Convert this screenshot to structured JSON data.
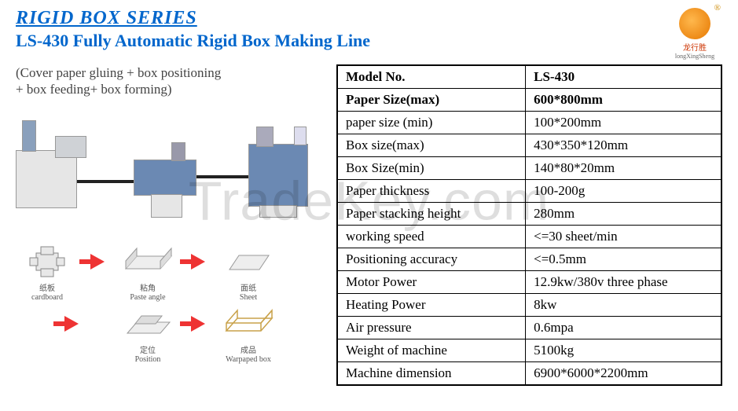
{
  "header": {
    "series": "RIGID BOX SERIES",
    "product": "LS-430 Fully Automatic Rigid Box Making Line",
    "subtitle_l1": "(Cover paper gluing + box positioning",
    "subtitle_l2": "+ box feeding+ box forming)"
  },
  "logo": {
    "cn": "龙行胜",
    "en": "longXingSheng"
  },
  "watermark": "TradeKey.com",
  "diagram": {
    "s1_cn": "纸板",
    "s1_en": "cardboard",
    "s2_cn": "粘角",
    "s2_en": "Paste angle",
    "s3_cn": "面纸",
    "s3_en": "Sheet",
    "s4_cn": "定位",
    "s4_en": "Position",
    "s5_cn": "成品",
    "s5_en": "Warpaped box"
  },
  "spec": {
    "columns": [
      "Model  No.",
      "LS-430"
    ],
    "rows": [
      [
        "Paper Size(max)",
        "600*800mm"
      ],
      [
        "paper size (min)",
        "100*200mm"
      ],
      [
        "Box size(max)",
        "430*350*120mm"
      ],
      [
        "Box Size(min)",
        "140*80*20mm"
      ],
      [
        "Paper thickness",
        "100-200g"
      ],
      [
        "Paper stacking height",
        "280mm"
      ],
      [
        "working speed",
        "<=30 sheet/min"
      ],
      [
        "Positioning accuracy",
        "<=0.5mm"
      ],
      [
        "Motor Power",
        "12.9kw/380v three phase"
      ],
      [
        "Heating Power",
        "8kw"
      ],
      [
        "Air pressure",
        "0.6mpa"
      ],
      [
        "Weight of machine",
        "5100kg"
      ],
      [
        "Machine dimension",
        "6900*6000*2200mm"
      ]
    ],
    "table_style": {
      "border_color": "#000000",
      "font_size": 17,
      "cell_padding": "4px 10px"
    }
  },
  "colors": {
    "title_blue": "#0066cc",
    "arrow_red": "#ee3333",
    "text_gray": "#444444"
  }
}
